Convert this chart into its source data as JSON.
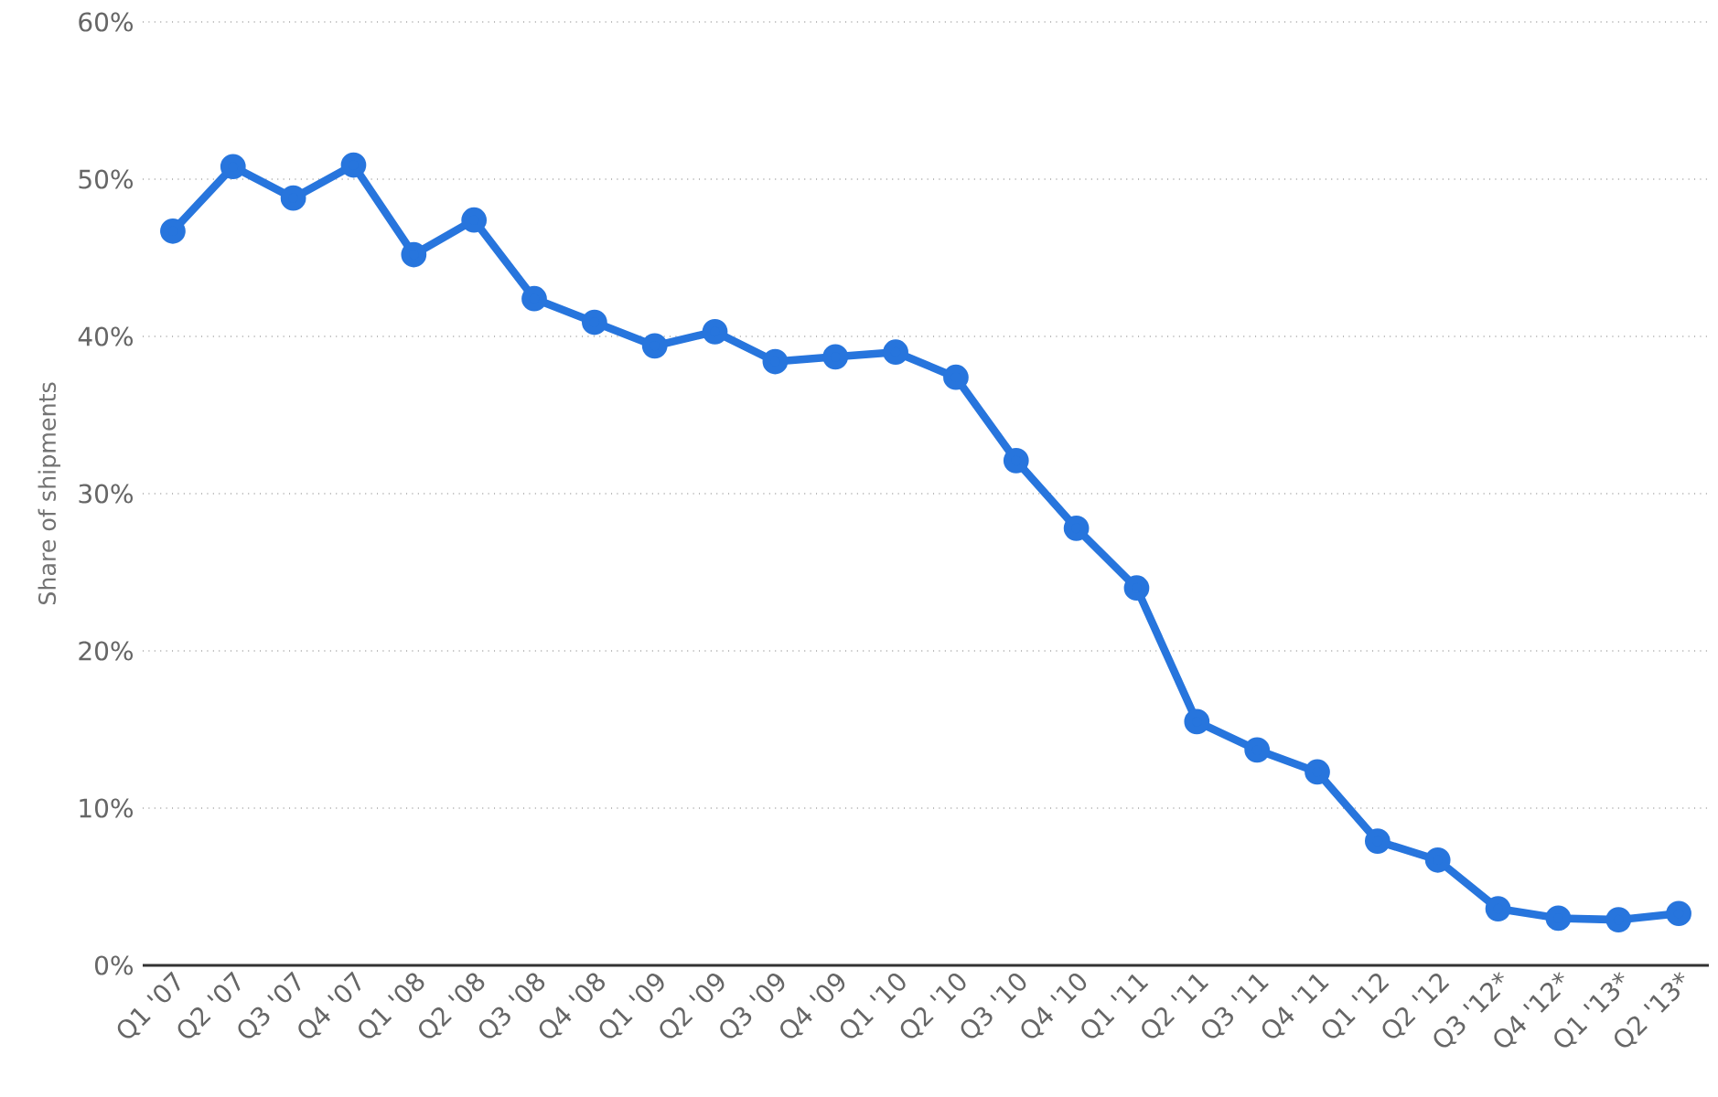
{
  "chart_data": {
    "type": "line",
    "ylabel": "Share of shipments",
    "categories": [
      "Q1 '07",
      "Q2 '07",
      "Q3 '07",
      "Q4 '07",
      "Q1 '08",
      "Q2 '08",
      "Q3 '08",
      "Q4 '08",
      "Q1 '09",
      "Q2 '09",
      "Q3 '09",
      "Q4 '09",
      "Q1 '10",
      "Q2 '10",
      "Q3 '10",
      "Q4 '10",
      "Q1 '11",
      "Q2 '11",
      "Q3 '11",
      "Q4 '11",
      "Q1 '12",
      "Q2 '12",
      "Q3 '12*",
      "Q4 '12*",
      "Q1 '13*",
      "Q2 '13*"
    ],
    "series": [
      {
        "color": "#2775dd",
        "values": [
          46.7,
          50.8,
          48.8,
          50.9,
          45.2,
          47.4,
          42.4,
          40.9,
          39.4,
          40.3,
          38.4,
          38.7,
          39.0,
          37.4,
          32.1,
          27.8,
          24.0,
          15.5,
          13.7,
          12.3,
          7.9,
          6.7,
          3.6,
          3.0,
          2.9,
          3.3
        ]
      }
    ],
    "ylim": [
      0,
      60
    ],
    "yticks": [
      {
        "value": 0,
        "label": "0%"
      },
      {
        "value": 10,
        "label": "10%"
      },
      {
        "value": 20,
        "label": "20%"
      },
      {
        "value": 30,
        "label": "30%"
      },
      {
        "value": 40,
        "label": "40%"
      },
      {
        "value": 50,
        "label": "50%"
      },
      {
        "value": 60,
        "label": "60%"
      }
    ],
    "grid": "y",
    "marker": "circle",
    "line_style": "solid",
    "legend": false
  }
}
